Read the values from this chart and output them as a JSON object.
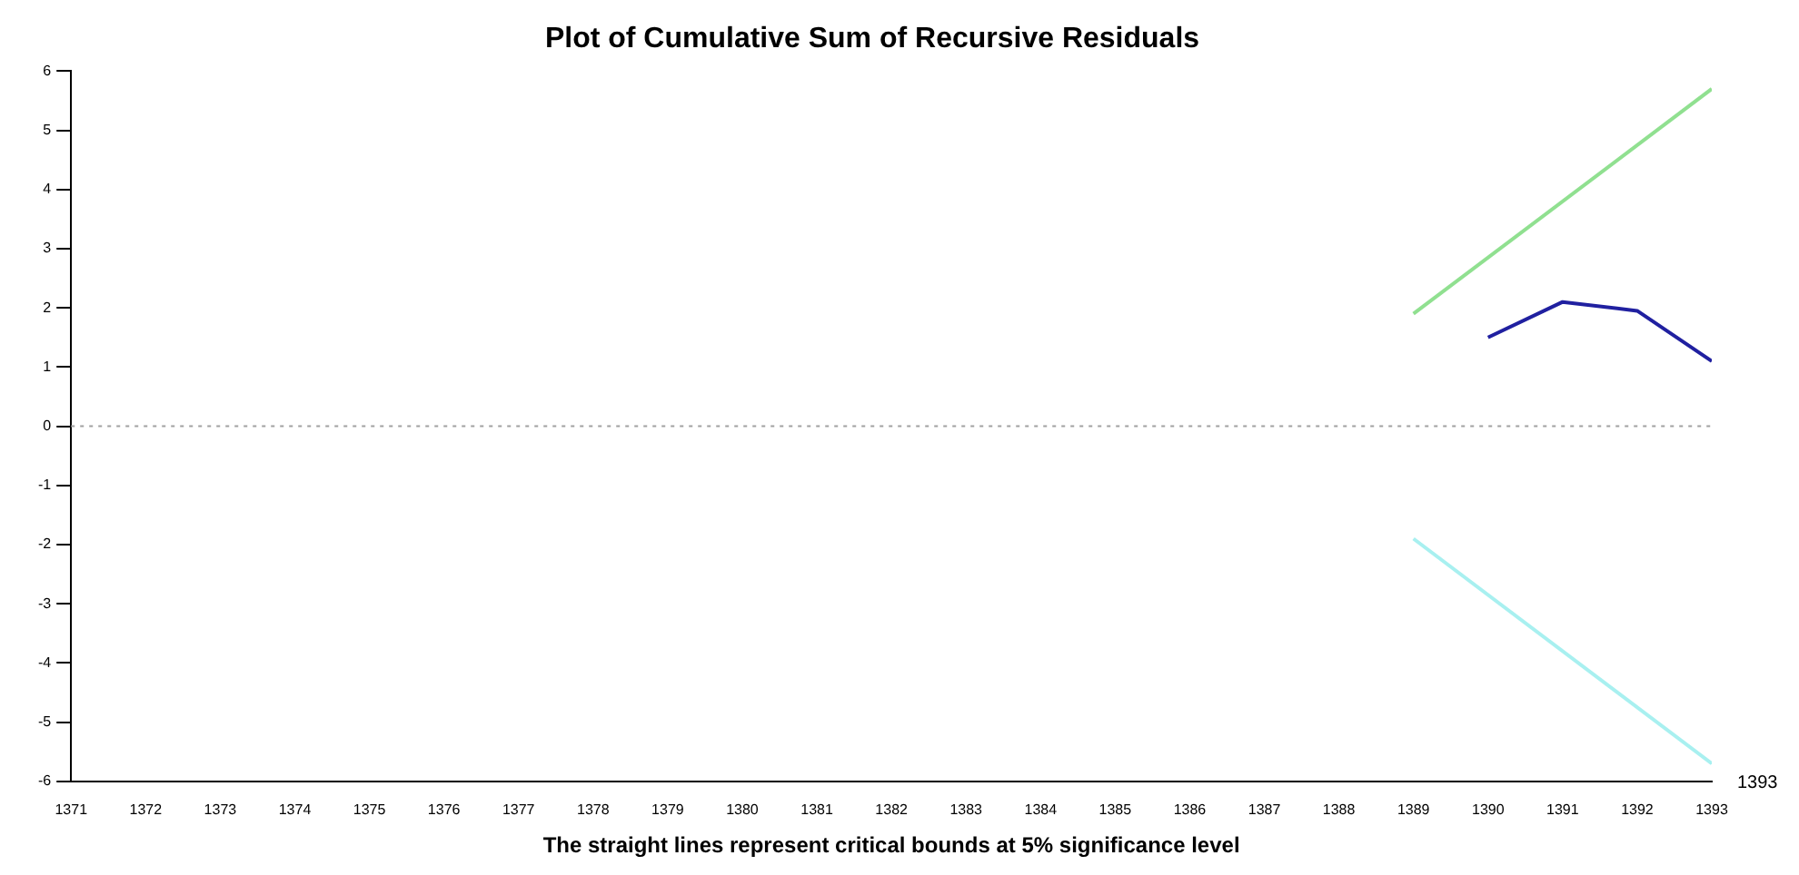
{
  "chart_data": {
    "type": "line",
    "title": "Plot of Cumulative Sum of Recursive Residuals",
    "xlabel": "1393",
    "annotations": [
      "The straight lines represent critical bounds at 5% significance level"
    ],
    "series": [
      {
        "color": "#90e090",
        "x": [
          1389,
          1393
        ],
        "values": [
          1.9,
          5.7
        ]
      },
      {
        "color": "#2020a0",
        "x": [
          1390,
          1391,
          1392,
          1393
        ],
        "values": [
          1.5,
          2.1,
          1.95,
          1.1
        ]
      },
      {
        "color": "#a8f0f0",
        "x": [
          1389,
          1393
        ],
        "values": [
          -1.9,
          -5.7
        ]
      }
    ],
    "xlim": [
      1371,
      1393
    ],
    "xticks": [
      1371,
      1372,
      1373,
      1374,
      1375,
      1376,
      1377,
      1378,
      1379,
      1380,
      1381,
      1382,
      1383,
      1384,
      1385,
      1386,
      1387,
      1388,
      1389,
      1390,
      1391,
      1392,
      1393
    ],
    "ylim": [
      -6,
      6
    ],
    "yticks": [
      -6,
      -5,
      -4,
      -3,
      -2,
      -1,
      0,
      1,
      2,
      3,
      4,
      5,
      6
    ],
    "ref_lines": [
      {
        "axis": "y",
        "value": 0,
        "color": "#a0a0a0",
        "line_style": "dotted"
      }
    ],
    "grid": false,
    "legend": false,
    "marker": "none",
    "line_style": "solid"
  }
}
